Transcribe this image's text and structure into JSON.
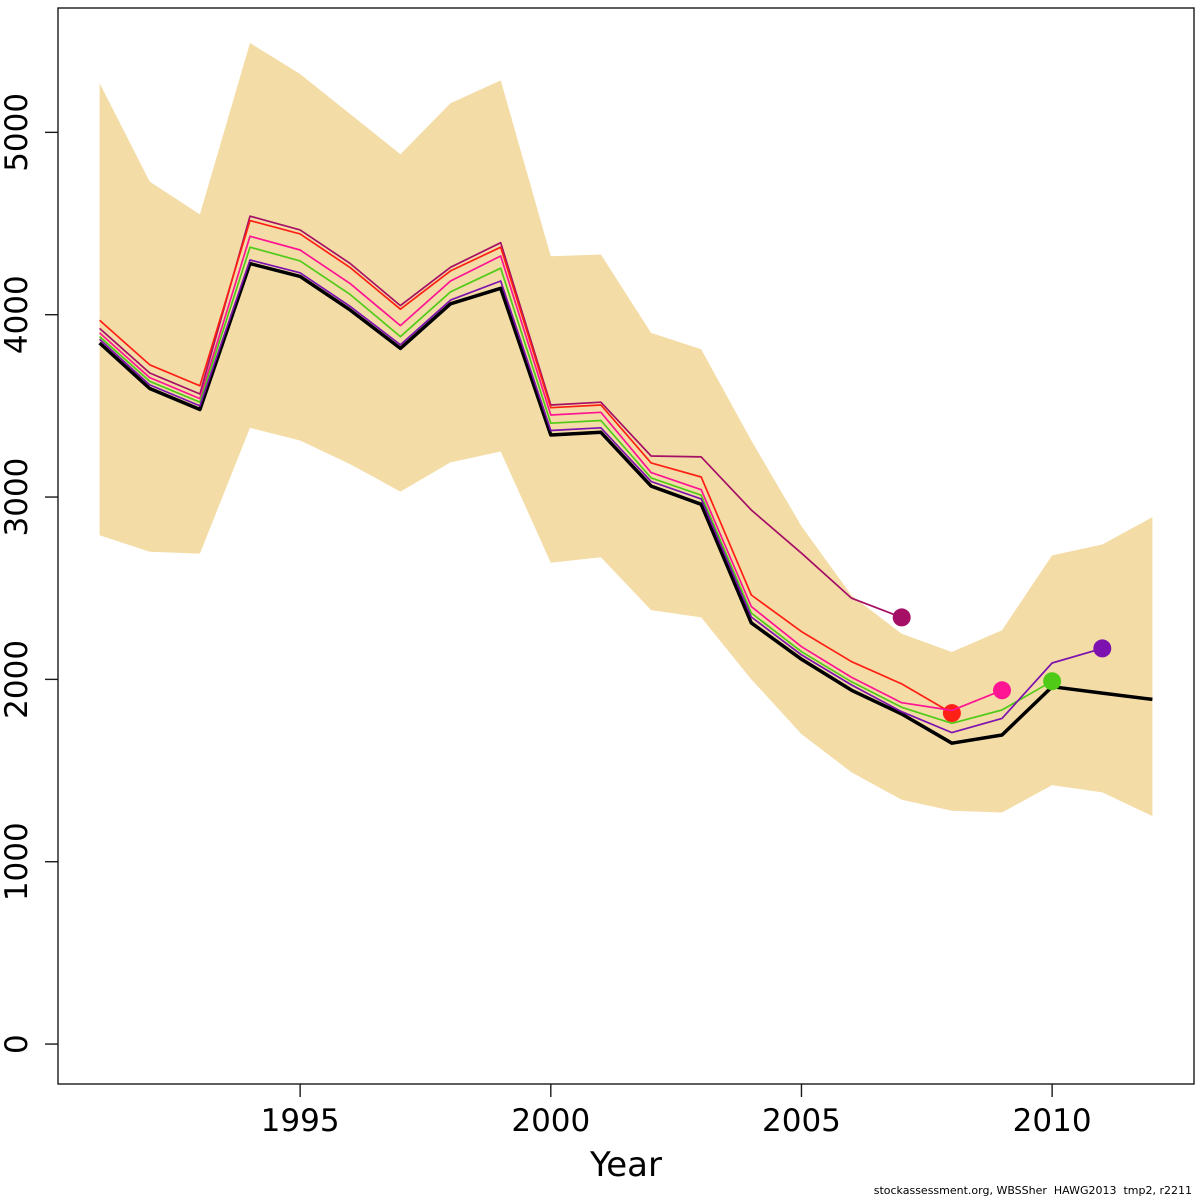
{
  "page": {
    "background": "#ffffff"
  },
  "axes": {
    "x_label": "Year",
    "x_ticks": [
      {
        "value": 1995,
        "label": "1995"
      },
      {
        "value": 2000,
        "label": "2000"
      },
      {
        "value": 2005,
        "label": "2005"
      },
      {
        "value": 2010,
        "label": "2010"
      }
    ],
    "y_ticks": [
      {
        "value": 0,
        "label": "0"
      },
      {
        "value": 1000,
        "label": "1000"
      },
      {
        "value": 2000,
        "label": "2000"
      },
      {
        "value": 3000,
        "label": "3000"
      },
      {
        "value": 4000,
        "label": "4000"
      },
      {
        "value": 5000,
        "label": "5000"
      }
    ]
  },
  "footer": {
    "credit": "stockassessment.org, WBSSher  HAWG2013  tmp2, r2211"
  },
  "chart_data": {
    "type": "line",
    "title": "",
    "xlabel": "Year",
    "ylabel": "",
    "grid": false,
    "legend": "none",
    "x": [
      1991,
      1992,
      1993,
      1994,
      1995,
      1996,
      1997,
      1998,
      1999,
      2000,
      2001,
      2002,
      2003,
      2004,
      2005,
      2006,
      2007,
      2008,
      2009,
      2010,
      2011,
      2012
    ],
    "xlim": [
      1990.17,
      2012.83
    ],
    "ylim": [
      -219,
      5682
    ],
    "band": {
      "name": "confidence-band",
      "color": "#F4DCA6",
      "upper": [
        5270,
        4730,
        4550,
        5490,
        5320,
        5100,
        4880,
        5160,
        5285,
        4320,
        4330,
        3900,
        3810,
        3310,
        2840,
        2460,
        2250,
        2150,
        2270,
        2680,
        2740,
        2890
      ],
      "lower": [
        2790,
        2700,
        2690,
        3380,
        3310,
        3180,
        3030,
        3190,
        3250,
        2640,
        2670,
        2380,
        2340,
        2000,
        1700,
        1490,
        1340,
        1280,
        1270,
        1420,
        1380,
        1250
      ]
    },
    "series": [
      {
        "name": "current-assessment-to-2012",
        "color": "#000000",
        "line_width": 3.5,
        "end_dot": false,
        "start_year": 1991,
        "values": [
          3845,
          3595,
          3480,
          4280,
          4210,
          4025,
          3815,
          4060,
          4145,
          3340,
          3355,
          3060,
          2960,
          2310,
          2110,
          1940,
          1810,
          1650,
          1695,
          1960,
          1925,
          1890
        ]
      },
      {
        "name": "retro-peel-to-2007",
        "color": "#A50F66",
        "line_width": 1.7,
        "end_dot": true,
        "start_year": 1991,
        "values": [
          3925,
          3680,
          3565,
          4540,
          4465,
          4280,
          4050,
          4260,
          4395,
          3505,
          3520,
          3225,
          3220,
          2929,
          2692,
          2445,
          2340
        ]
      },
      {
        "name": "retro-peel-to-2008",
        "color": "#FF2015",
        "line_width": 1.7,
        "end_dot": true,
        "start_year": 1991,
        "values": [
          3970,
          3725,
          3610,
          4516,
          4443,
          4258,
          4030,
          4240,
          4370,
          3490,
          3505,
          3187,
          3110,
          2463,
          2262,
          2097,
          1975,
          1815
        ]
      },
      {
        "name": "retro-peel-to-2009",
        "color": "#FF1493",
        "line_width": 1.7,
        "end_dot": true,
        "start_year": 1991,
        "values": [
          3900,
          3655,
          3540,
          4430,
          4355,
          4170,
          3940,
          4185,
          4322,
          3450,
          3465,
          3134,
          3040,
          2399,
          2179,
          2011,
          1872,
          1830,
          1940
        ]
      },
      {
        "name": "retro-peel-to-2010",
        "color": "#4FCB17",
        "line_width": 1.7,
        "end_dot": true,
        "start_year": 1991,
        "values": [
          3880,
          3635,
          3520,
          4370,
          4295,
          4110,
          3880,
          4125,
          4255,
          3405,
          3420,
          3105,
          3010,
          2364,
          2152,
          1987,
          1847,
          1759,
          1832,
          1990
        ]
      },
      {
        "name": "retro-peel-to-2011",
        "color": "#7D11B0",
        "line_width": 1.7,
        "end_dot": true,
        "start_year": 1991,
        "values": [
          3865,
          3615,
          3500,
          4300,
          4230,
          4045,
          3835,
          4080,
          4185,
          3365,
          3380,
          3085,
          2990,
          2342,
          2134,
          1969,
          1823,
          1708,
          1786,
          2090,
          2170
        ]
      }
    ]
  }
}
